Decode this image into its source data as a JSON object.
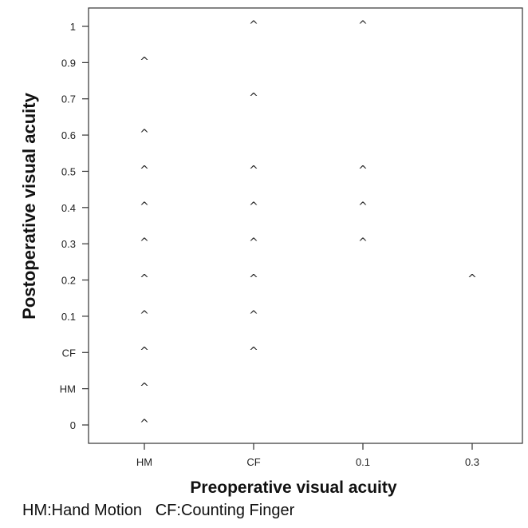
{
  "chart_data": {
    "type": "scatter",
    "title": "",
    "xlabel": "Preoperative visual acuity",
    "ylabel": "Postoperative visual acuity",
    "x_categories": [
      "HM",
      "CF",
      "0.1",
      "0.3"
    ],
    "y_categories": [
      "0",
      "HM",
      "CF",
      "0.1",
      "0.2",
      "0.3",
      "0.4",
      "0.5",
      "0.6",
      "0.7",
      "0.9",
      "1"
    ],
    "marker": "^",
    "grid": false,
    "points": [
      {
        "x": "HM",
        "y": "0"
      },
      {
        "x": "HM",
        "y": "HM"
      },
      {
        "x": "HM",
        "y": "CF"
      },
      {
        "x": "HM",
        "y": "0.1"
      },
      {
        "x": "HM",
        "y": "0.2"
      },
      {
        "x": "HM",
        "y": "0.3"
      },
      {
        "x": "HM",
        "y": "0.4"
      },
      {
        "x": "HM",
        "y": "0.5"
      },
      {
        "x": "HM",
        "y": "0.6"
      },
      {
        "x": "HM",
        "y": "0.9"
      },
      {
        "x": "CF",
        "y": "CF"
      },
      {
        "x": "CF",
        "y": "0.1"
      },
      {
        "x": "CF",
        "y": "0.2"
      },
      {
        "x": "CF",
        "y": "0.3"
      },
      {
        "x": "CF",
        "y": "0.4"
      },
      {
        "x": "CF",
        "y": "0.5"
      },
      {
        "x": "CF",
        "y": "0.7"
      },
      {
        "x": "CF",
        "y": "1"
      },
      {
        "x": "0.1",
        "y": "0.3"
      },
      {
        "x": "0.1",
        "y": "0.4"
      },
      {
        "x": "0.1",
        "y": "0.5"
      },
      {
        "x": "0.1",
        "y": "1"
      },
      {
        "x": "0.3",
        "y": "0.2"
      }
    ]
  },
  "footnote": "HM:Hand Motion   CF:Counting Finger"
}
